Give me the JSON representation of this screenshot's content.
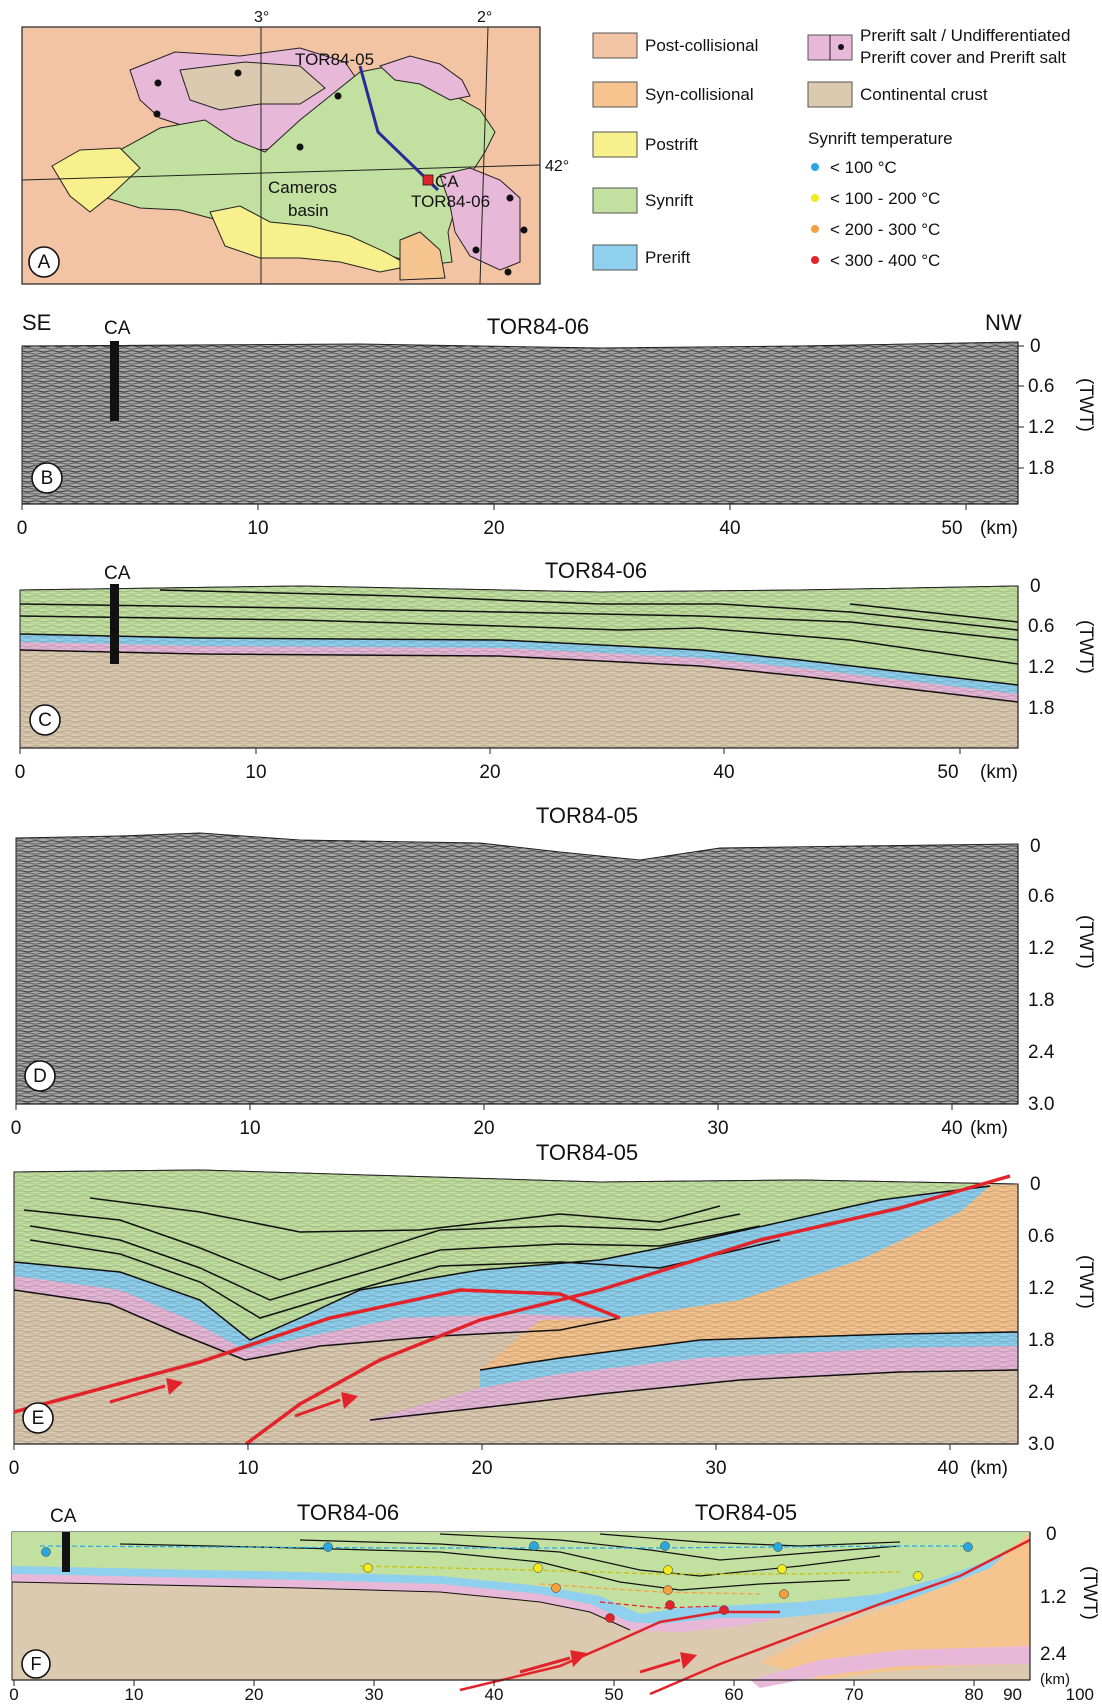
{
  "map": {
    "letter": "A",
    "lon_labels": [
      "3°",
      "2°"
    ],
    "lat_label": "42°",
    "line_a": "TOR84-05",
    "line_b": "TOR84-06",
    "point": "CA",
    "basin_line1": "Cameros",
    "basin_line2": "basin"
  },
  "legend": {
    "items": [
      {
        "label": "Post-collisional",
        "color": "#f2c4a4"
      },
      {
        "label": "Syn-collisional",
        "color": "#f6c48e"
      },
      {
        "label": "Postrift",
        "color": "#f7f08c"
      },
      {
        "label": "Synrift",
        "color": "#c2e0a0"
      },
      {
        "label": "Prerift",
        "color": "#8fd0ee"
      }
    ],
    "salt_line1": "Prerift salt / Undifferentiated",
    "salt_line2": "Prerift cover and Prerift salt",
    "salt_color": "#e8b8d8",
    "crust_label": "Continental crust",
    "crust_color": "#dccab0",
    "temp_title": "Synrift temperature",
    "temps": [
      {
        "label": "< 100 °C",
        "color": "#29a8e0"
      },
      {
        "label": "< 100 - 200 °C",
        "color": "#f2ea1a"
      },
      {
        "label": "< 200 - 300 °C",
        "color": "#f5a040"
      },
      {
        "label": "< 300 - 400 °C",
        "color": "#e3232a"
      }
    ]
  },
  "panels": {
    "b": {
      "letter": "B",
      "title": "TOR84-06",
      "left": "SE",
      "right": "NW",
      "well": "CA",
      "yticks": [
        "0",
        "0.6",
        "1.2",
        "1.8"
      ],
      "xticks": [
        "0",
        "10",
        "20",
        "40",
        "50"
      ],
      "unit": "(km)",
      "axis": "(TWT)"
    },
    "c": {
      "letter": "C",
      "title": "TOR84-06",
      "well": "CA",
      "yticks": [
        "0",
        "0.6",
        "1.2",
        "1.8"
      ],
      "xticks": [
        "0",
        "10",
        "20",
        "40",
        "50"
      ],
      "unit": "(km)",
      "axis": "(TWT)"
    },
    "d": {
      "letter": "D",
      "title": "TOR84-05",
      "yticks": [
        "0",
        "0.6",
        "1.2",
        "1.8",
        "2.4",
        "3.0"
      ],
      "xticks": [
        "0",
        "10",
        "20",
        "30",
        "40"
      ],
      "unit": "(km)",
      "axis": "(TWT)"
    },
    "e": {
      "letter": "E",
      "title": "TOR84-05",
      "yticks": [
        "0",
        "0.6",
        "1.2",
        "1.8",
        "2.4",
        "3.0"
      ],
      "xticks": [
        "0",
        "10",
        "20",
        "30",
        "40"
      ],
      "unit": "(km)",
      "axis": "(TWT)"
    },
    "f": {
      "letter": "F",
      "title_a": "TOR84-06",
      "title_b": "TOR84-05",
      "well": "CA",
      "yticks": [
        "0",
        "1.2",
        "2.4"
      ],
      "xticks": [
        "0",
        "10",
        "20",
        "30",
        "40",
        "50",
        "60",
        "70",
        "80",
        "90",
        "100"
      ],
      "unit": "(km)",
      "axis": "(TWT)"
    }
  }
}
